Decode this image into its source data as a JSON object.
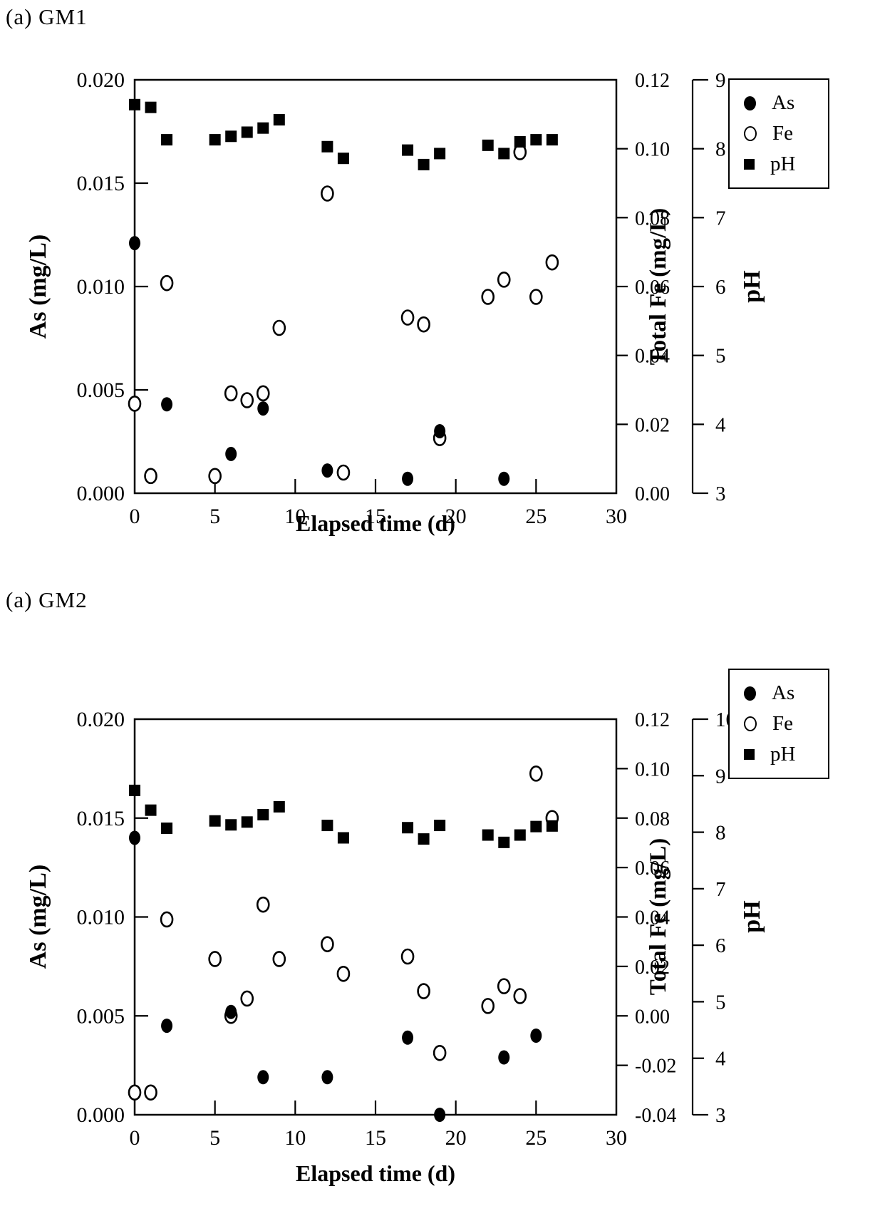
{
  "colors": {
    "foreground": "#000000",
    "background": "#ffffff"
  },
  "chart_data": [
    {
      "type": "scatter",
      "title": "(a) GM1",
      "xlabel": "Elapsed time (d)",
      "ylabel_left": "As (mg/L)",
      "ylabel_right1": "Total Fe (mg/L)",
      "ylabel_right2": "pH",
      "xlim": [
        0,
        30
      ],
      "x_ticks": [
        0,
        5,
        10,
        15,
        20,
        25,
        30
      ],
      "grid": false,
      "legend_position": "outside-top-right",
      "as_axis": {
        "lim": [
          0,
          0.02
        ],
        "ticks": [
          "0.020",
          "0.015",
          "0.010",
          "0.005",
          "0.000"
        ]
      },
      "fe_axis": {
        "lim": [
          0,
          0.12
        ],
        "ticks": [
          "0.12",
          "0.10",
          "0.08",
          "0.06",
          "0.04",
          "0.02",
          "0.00"
        ]
      },
      "ph_axis": {
        "lim": [
          3,
          9
        ],
        "ticks": [
          "9",
          "8",
          "7",
          "6",
          "5",
          "4",
          "3"
        ]
      },
      "legend": [
        {
          "marker": "filled-circle",
          "label": "As"
        },
        {
          "marker": "open-circle",
          "label": "Fe"
        },
        {
          "marker": "filled-square",
          "label": "pH"
        }
      ],
      "series": [
        {
          "name": "As",
          "marker": "filled-circle",
          "axis": "as",
          "points": [
            [
              0,
              0.0121
            ],
            [
              2,
              0.0043
            ],
            [
              6,
              0.0019
            ],
            [
              8,
              0.0041
            ],
            [
              12,
              0.0011
            ],
            [
              17,
              0.0007
            ],
            [
              19,
              0.003
            ],
            [
              23,
              0.0007
            ]
          ]
        },
        {
          "name": "Fe",
          "marker": "open-circle",
          "axis": "fe",
          "points": [
            [
              0,
              0.026
            ],
            [
              1,
              0.005
            ],
            [
              2,
              0.061
            ],
            [
              5,
              0.005
            ],
            [
              6,
              0.029
            ],
            [
              7,
              0.027
            ],
            [
              8,
              0.029
            ],
            [
              9,
              0.048
            ],
            [
              12,
              0.087
            ],
            [
              13,
              0.006
            ],
            [
              17,
              0.051
            ],
            [
              18,
              0.049
            ],
            [
              19,
              0.016
            ],
            [
              22,
              0.057
            ],
            [
              23,
              0.062
            ],
            [
              24,
              0.099
            ],
            [
              25,
              0.057
            ],
            [
              26,
              0.067
            ]
          ]
        },
        {
          "name": "pH",
          "marker": "filled-square",
          "axis": "ph",
          "points": [
            [
              0,
              8.64
            ],
            [
              1,
              8.6
            ],
            [
              2,
              8.13
            ],
            [
              5,
              8.13
            ],
            [
              6,
              8.18
            ],
            [
              7,
              8.24
            ],
            [
              8,
              8.3
            ],
            [
              9,
              8.42
            ],
            [
              12,
              8.03
            ],
            [
              13,
              7.86
            ],
            [
              17,
              7.98
            ],
            [
              18,
              7.77
            ],
            [
              19,
              7.93
            ],
            [
              22,
              8.05
            ],
            [
              23,
              7.93
            ],
            [
              24,
              8.1
            ],
            [
              25,
              8.13
            ],
            [
              26,
              8.13
            ]
          ]
        }
      ]
    },
    {
      "type": "scatter",
      "title": "(a) GM2",
      "xlabel": "Elapsed time (d)",
      "ylabel_left": "As (mg/L)",
      "ylabel_right1": "Total Fe (mg/L)",
      "ylabel_right2": "pH",
      "xlim": [
        0,
        30
      ],
      "x_ticks": [
        0,
        5,
        10,
        15,
        20,
        25,
        30
      ],
      "grid": false,
      "legend_position": "outside-top-right",
      "as_axis": {
        "lim": [
          0,
          0.02
        ],
        "ticks": [
          "0.020",
          "0.015",
          "0.010",
          "0.005",
          "0.000"
        ]
      },
      "fe_axis": {
        "lim": [
          -0.04,
          0.12
        ],
        "ticks": [
          "0.12",
          "0.10",
          "0.08",
          "0.06",
          "0.04",
          "0.02",
          "0.00",
          "-0.02",
          "-0.04"
        ]
      },
      "ph_axis": {
        "lim": [
          3,
          10
        ],
        "ticks": [
          "10",
          "9",
          "8",
          "7",
          "6",
          "5",
          "4",
          "3"
        ]
      },
      "legend": [
        {
          "marker": "filled-circle",
          "label": "As"
        },
        {
          "marker": "open-circle",
          "label": "Fe"
        },
        {
          "marker": "filled-square",
          "label": "pH"
        }
      ],
      "series": [
        {
          "name": "As",
          "marker": "filled-circle",
          "axis": "as",
          "points": [
            [
              0,
              0.014
            ],
            [
              2,
              0.0045
            ],
            [
              6,
              0.0052
            ],
            [
              8,
              0.0019
            ],
            [
              12,
              0.0019
            ],
            [
              17,
              0.0039
            ],
            [
              19,
              0.0
            ],
            [
              23,
              0.0029
            ],
            [
              25,
              0.004
            ]
          ]
        },
        {
          "name": "Fe",
          "marker": "open-circle",
          "axis": "fe",
          "points": [
            [
              0,
              -0.031
            ],
            [
              1,
              -0.031
            ],
            [
              2,
              0.039
            ],
            [
              5,
              0.023
            ],
            [
              6,
              0.0
            ],
            [
              7,
              0.007
            ],
            [
              8,
              0.045
            ],
            [
              9,
              0.023
            ],
            [
              12,
              0.029
            ],
            [
              13,
              0.017
            ],
            [
              17,
              0.024
            ],
            [
              18,
              0.01
            ],
            [
              19,
              -0.015
            ],
            [
              22,
              0.004
            ],
            [
              23,
              0.012
            ],
            [
              24,
              0.008
            ],
            [
              25,
              0.098
            ],
            [
              26,
              0.08
            ]
          ]
        },
        {
          "name": "pH",
          "marker": "filled-square",
          "axis": "ph",
          "points": [
            [
              0,
              8.74
            ],
            [
              1,
              8.39
            ],
            [
              2,
              8.07
            ],
            [
              5,
              8.2
            ],
            [
              6,
              8.13
            ],
            [
              7,
              8.18
            ],
            [
              8,
              8.31
            ],
            [
              9,
              8.45
            ],
            [
              12,
              8.12
            ],
            [
              13,
              7.9
            ],
            [
              17,
              8.08
            ],
            [
              18,
              7.88
            ],
            [
              19,
              8.12
            ],
            [
              22,
              7.95
            ],
            [
              23,
              7.82
            ],
            [
              24,
              7.95
            ],
            [
              25,
              8.1
            ],
            [
              26,
              8.11
            ]
          ]
        }
      ]
    }
  ]
}
